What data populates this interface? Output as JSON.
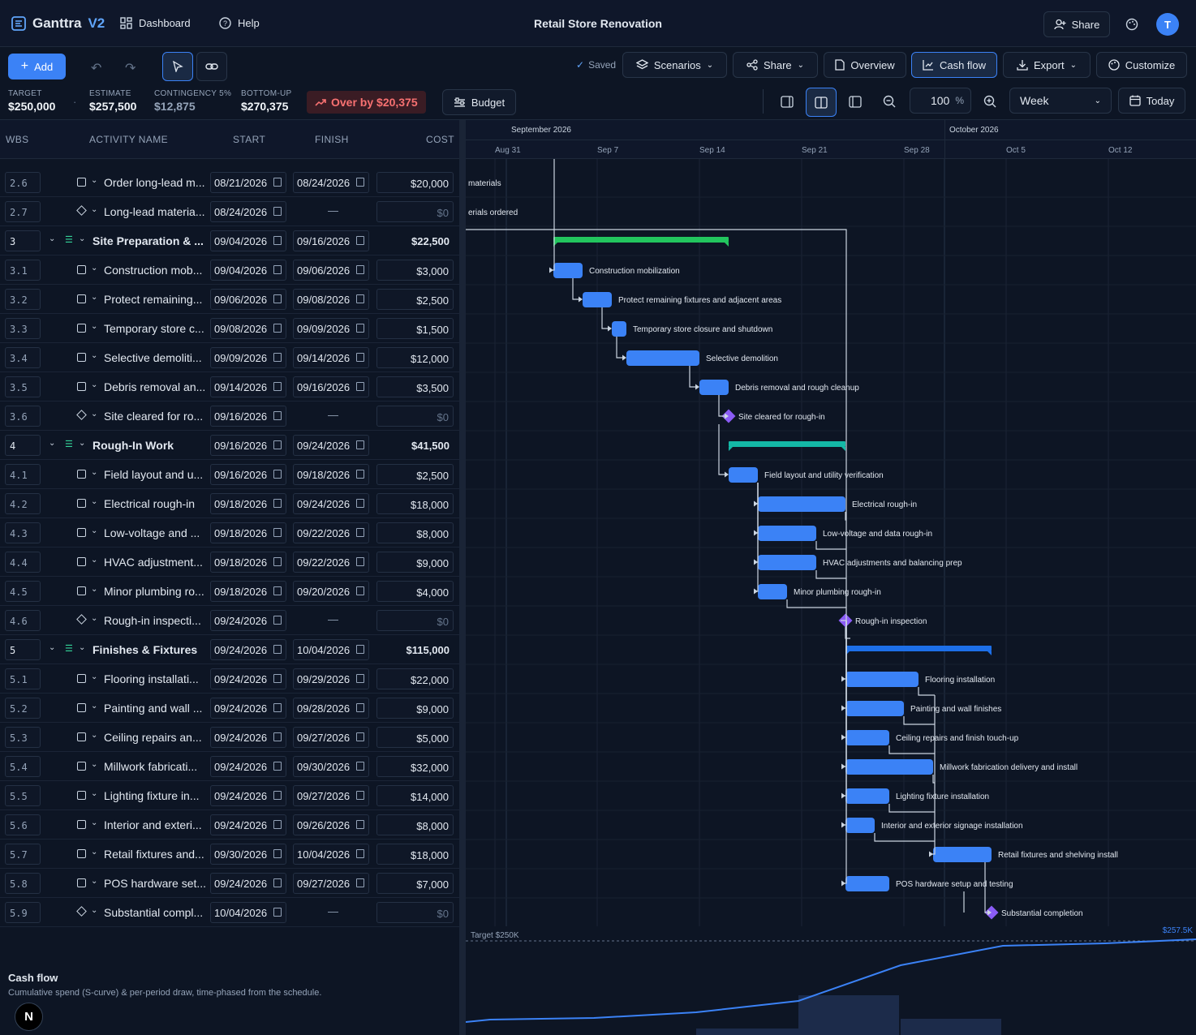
{
  "app": {
    "name": "Ganttra",
    "version": "V2",
    "nav_dashboard": "Dashboard",
    "nav_help": "Help",
    "project_title": "Retail Store Renovation",
    "share": "Share",
    "avatar_initial": "T"
  },
  "toolbar": {
    "add": "Add",
    "saved": "Saved",
    "scenarios": "Scenarios",
    "share": "Share",
    "overview": "Overview",
    "cash_flow": "Cash flow",
    "export": "Export",
    "customize": "Customize",
    "budget": "Budget",
    "zoom_value": "100",
    "zoom_unit": "%",
    "scale": "Week",
    "today": "Today"
  },
  "metrics": {
    "target_label": "TARGET",
    "target": "$250,000",
    "estimate_label": "ESTIMATE",
    "estimate": "$257,500",
    "contingency_label": "CONTINGENCY 5%",
    "contingency": "$12,875",
    "bottomup_label": "BOTTOM-UP",
    "bottomup": "$270,375",
    "over": "Over by $20,375"
  },
  "columns": {
    "wbs": "WBS",
    "name": "ACTIVITY NAME",
    "start": "START",
    "finish": "FINISH",
    "cost": "COST"
  },
  "rows": [
    {
      "wbs": "2.6",
      "name": "Order long-lead m...",
      "start": "08/21/2026",
      "finish": "08/24/2026",
      "cost": "$20,000",
      "kind": "task"
    },
    {
      "wbs": "2.7",
      "name": "Long-lead materia...",
      "start": "08/24/2026",
      "finish": "—",
      "cost": "$0",
      "kind": "milestone"
    },
    {
      "wbs": "3",
      "name": "Site Preparation & ...",
      "start": "09/04/2026",
      "finish": "09/16/2026",
      "cost": "$22,500",
      "kind": "summary"
    },
    {
      "wbs": "3.1",
      "name": "Construction mob...",
      "start": "09/04/2026",
      "finish": "09/06/2026",
      "cost": "$3,000",
      "kind": "task"
    },
    {
      "wbs": "3.2",
      "name": "Protect remaining...",
      "start": "09/06/2026",
      "finish": "09/08/2026",
      "cost": "$2,500",
      "kind": "task"
    },
    {
      "wbs": "3.3",
      "name": "Temporary store c...",
      "start": "09/08/2026",
      "finish": "09/09/2026",
      "cost": "$1,500",
      "kind": "task"
    },
    {
      "wbs": "3.4",
      "name": "Selective demoliti...",
      "start": "09/09/2026",
      "finish": "09/14/2026",
      "cost": "$12,000",
      "kind": "task"
    },
    {
      "wbs": "3.5",
      "name": "Debris removal an...",
      "start": "09/14/2026",
      "finish": "09/16/2026",
      "cost": "$3,500",
      "kind": "task"
    },
    {
      "wbs": "3.6",
      "name": "Site cleared for ro...",
      "start": "09/16/2026",
      "finish": "—",
      "cost": "$0",
      "kind": "milestone"
    },
    {
      "wbs": "4",
      "name": "Rough-In Work",
      "start": "09/16/2026",
      "finish": "09/24/2026",
      "cost": "$41,500",
      "kind": "summary"
    },
    {
      "wbs": "4.1",
      "name": "Field layout and u...",
      "start": "09/16/2026",
      "finish": "09/18/2026",
      "cost": "$2,500",
      "kind": "task"
    },
    {
      "wbs": "4.2",
      "name": "Electrical rough-in",
      "start": "09/18/2026",
      "finish": "09/24/2026",
      "cost": "$18,000",
      "kind": "task"
    },
    {
      "wbs": "4.3",
      "name": "Low-voltage and ...",
      "start": "09/18/2026",
      "finish": "09/22/2026",
      "cost": "$8,000",
      "kind": "task"
    },
    {
      "wbs": "4.4",
      "name": "HVAC adjustment...",
      "start": "09/18/2026",
      "finish": "09/22/2026",
      "cost": "$9,000",
      "kind": "task"
    },
    {
      "wbs": "4.5",
      "name": "Minor plumbing ro...",
      "start": "09/18/2026",
      "finish": "09/20/2026",
      "cost": "$4,000",
      "kind": "task"
    },
    {
      "wbs": "4.6",
      "name": "Rough-in inspecti...",
      "start": "09/24/2026",
      "finish": "—",
      "cost": "$0",
      "kind": "milestone"
    },
    {
      "wbs": "5",
      "name": "Finishes & Fixtures",
      "start": "09/24/2026",
      "finish": "10/04/2026",
      "cost": "$115,000",
      "kind": "summary"
    },
    {
      "wbs": "5.1",
      "name": "Flooring installati...",
      "start": "09/24/2026",
      "finish": "09/29/2026",
      "cost": "$22,000",
      "kind": "task"
    },
    {
      "wbs": "5.2",
      "name": "Painting and wall ...",
      "start": "09/24/2026",
      "finish": "09/28/2026",
      "cost": "$9,000",
      "kind": "task"
    },
    {
      "wbs": "5.3",
      "name": "Ceiling repairs an...",
      "start": "09/24/2026",
      "finish": "09/27/2026",
      "cost": "$5,000",
      "kind": "task"
    },
    {
      "wbs": "5.4",
      "name": "Millwork fabricati...",
      "start": "09/24/2026",
      "finish": "09/30/2026",
      "cost": "$32,000",
      "kind": "task"
    },
    {
      "wbs": "5.5",
      "name": "Lighting fixture in...",
      "start": "09/24/2026",
      "finish": "09/27/2026",
      "cost": "$14,000",
      "kind": "task"
    },
    {
      "wbs": "5.6",
      "name": "Interior and exteri...",
      "start": "09/24/2026",
      "finish": "09/26/2026",
      "cost": "$8,000",
      "kind": "task"
    },
    {
      "wbs": "5.7",
      "name": "Retail fixtures and...",
      "start": "09/30/2026",
      "finish": "10/04/2026",
      "cost": "$18,000",
      "kind": "task"
    },
    {
      "wbs": "5.8",
      "name": "POS hardware set...",
      "start": "09/24/2026",
      "finish": "09/27/2026",
      "cost": "$7,000",
      "kind": "task"
    },
    {
      "wbs": "5.9",
      "name": "Substantial compl...",
      "start": "10/04/2026",
      "finish": "—",
      "cost": "$0",
      "kind": "milestone"
    }
  ],
  "timeline": {
    "months": [
      "September 2026",
      "October 2026"
    ],
    "weeks": [
      "Aug 31",
      "Sep 7",
      "Sep 14",
      "Sep 21",
      "Sep 28",
      "Oct 5",
      "Oct 12"
    ]
  },
  "gantt_labels": [
    "materials",
    "erials ordered",
    "",
    "Construction mobilization",
    "Protect remaining fixtures and adjacent areas",
    "Temporary store closure and shutdown",
    "Selective demolition",
    "Debris removal and rough cleanup",
    "Site cleared for rough-in",
    "",
    "Field layout and utility verification",
    "Electrical rough-in",
    "Low-voltage and data rough-in",
    "HVAC adjustments and balancing prep",
    "Minor plumbing rough-in",
    "Rough-in inspection",
    "",
    "Flooring installation",
    "Painting and wall finishes",
    "Ceiling repairs and finish touch-up",
    "Millwork fabrication delivery and install",
    "Lighting fixture installation",
    "Interior and exterior signage installation",
    "Retail fixtures and shelving install",
    "POS hardware setup and testing",
    "Substantial completion"
  ],
  "cashflow": {
    "title": "Cash flow",
    "subtitle": "Cumulative spend (S-curve) & per-period draw, time-phased from the schedule.",
    "target_label": "Target $250K",
    "end_label": "$257.5K"
  },
  "colors": {
    "accent": "#3b82f6",
    "task_bar": "#3b82f6",
    "summary_green": "#22c55e",
    "summary_teal": "#14b8a6",
    "summary_blue": "#1d6fe8",
    "milestone": "#8b5cf6",
    "over_red": "#f87171"
  }
}
